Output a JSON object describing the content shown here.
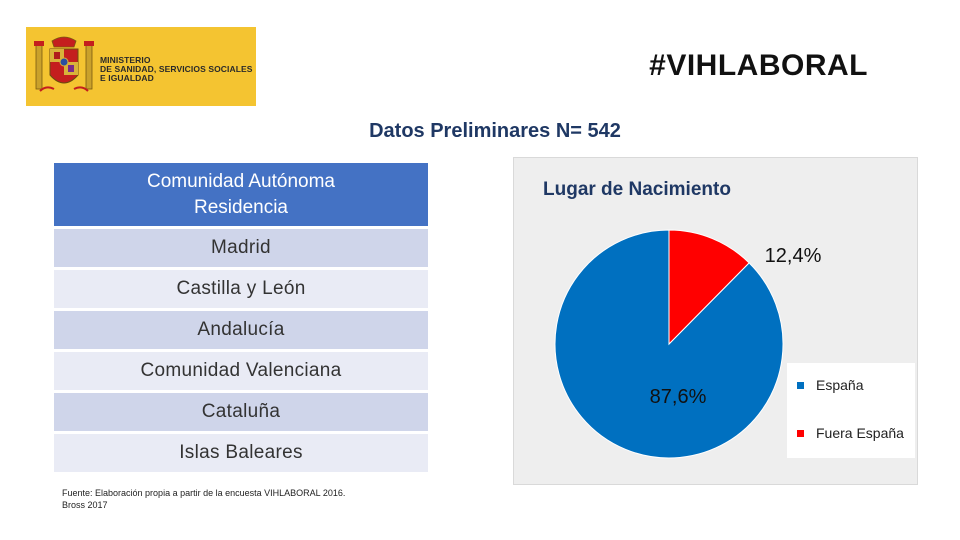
{
  "logo": {
    "lines": [
      "MINISTERIO",
      "DE SANIDAD, SERVICIOS SOCIALES",
      "E IGUALDAD"
    ],
    "background_color": "#f4c431",
    "emblem_icon": "coat-of-arms-icon"
  },
  "hashtag": "#VIHLABORAL",
  "subtitle": "Datos Preliminares N= 542",
  "table": {
    "header": "Comunidad Autónoma Residencia",
    "header_color": "#4472c4",
    "rows": [
      "Madrid",
      "Castilla y León",
      "Andalucía",
      "Comunidad Valenciana",
      "Cataluña",
      "Islas Baleares"
    ]
  },
  "source_note": {
    "line1": "Fuente: Elaboración propia a partir de la encuesta VIHLABORAL 2016.",
    "line2": "Bross 2017"
  },
  "chart_data": {
    "type": "pie",
    "title": "Lugar de Nacimiento",
    "legend_position": "right",
    "slices": [
      {
        "label": "España",
        "value": 87.6,
        "display": "87,6%",
        "color": "#0070c0"
      },
      {
        "label": "Fuera España",
        "value": 12.4,
        "display": "12,4%",
        "color": "#ff0000"
      }
    ]
  }
}
